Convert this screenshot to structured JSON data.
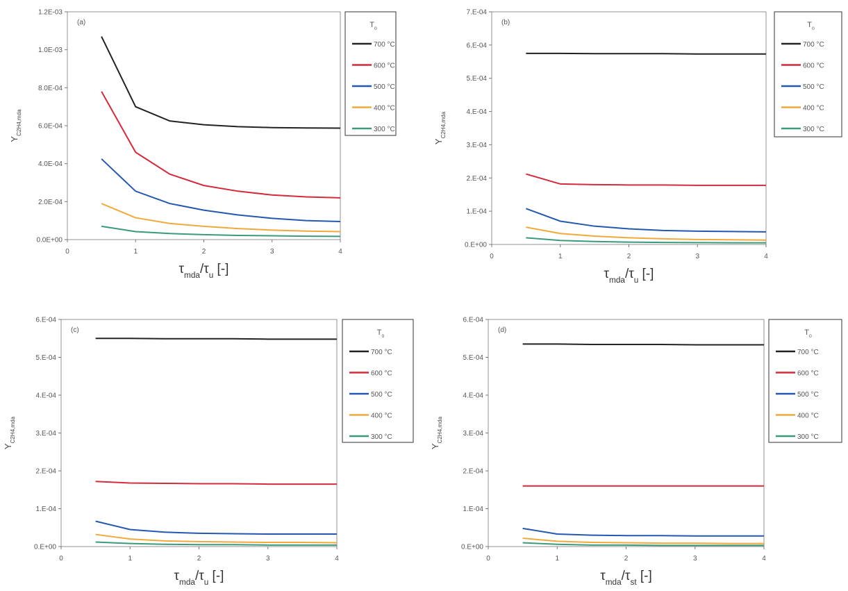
{
  "chart_data": [
    {
      "type": "line",
      "title": "(a)",
      "xlabel": [
        {
          "text": "τ"
        },
        {
          "text": "mda",
          "sub": true
        },
        {
          "text": "/τ"
        },
        {
          "text": "u",
          "sub": true
        },
        {
          "text": " [-]"
        }
      ],
      "ylabel": [
        {
          "text": "Y"
        },
        {
          "text": "C2H4,mda",
          "sub": true
        }
      ],
      "legend_title": [
        {
          "text": "T"
        },
        {
          "text": "0",
          "sub": true
        }
      ],
      "x": [
        0.5,
        1,
        1.5,
        2,
        2.5,
        3,
        3.5,
        4
      ],
      "xlim": [
        0,
        4
      ],
      "xticks": [
        0,
        1,
        2,
        3,
        4
      ],
      "ylim": [
        0,
        0.0012
      ],
      "yticks": [
        {
          "value": 0,
          "label": "0.0E+00"
        },
        {
          "value": 0.0002,
          "label": "2.0E-04"
        },
        {
          "value": 0.0004,
          "label": "4.0E-04"
        },
        {
          "value": 0.0006,
          "label": "6.0E-04"
        },
        {
          "value": 0.0008,
          "label": "8.0E-04"
        },
        {
          "value": 0.001,
          "label": "1.0E-03"
        },
        {
          "value": 0.0012,
          "label": "1.2E-03"
        }
      ],
      "series": [
        {
          "name": "700 °C",
          "color": "#222222",
          "values": [
            0.00107,
            0.0007,
            0.000625,
            0.000605,
            0.000595,
            0.00059,
            0.000588,
            0.000587
          ]
        },
        {
          "name": "600 °C",
          "color": "#d42a3c",
          "values": [
            0.00078,
            0.00046,
            0.000345,
            0.000285,
            0.000255,
            0.000235,
            0.000225,
            0.00022
          ]
        },
        {
          "name": "500 °C",
          "color": "#2458b0",
          "values": [
            0.000425,
            0.000255,
            0.00019,
            0.000155,
            0.00013,
            0.000112,
            0.0001,
            9.5e-05
          ]
        },
        {
          "name": "400 °C",
          "color": "#f2a93b",
          "values": [
            0.00019,
            0.000115,
            8.5e-05,
            7e-05,
            5.8e-05,
            5e-05,
            4.5e-05,
            4.2e-05
          ]
        },
        {
          "name": "300 °C",
          "color": "#3a9a7a",
          "values": [
            7e-05,
            4.2e-05,
            3.2e-05,
            2.6e-05,
            2.2e-05,
            2e-05,
            1.8e-05,
            1.7e-05
          ]
        }
      ]
    },
    {
      "type": "line",
      "title": "(b)",
      "xlabel": [
        {
          "text": "τ"
        },
        {
          "text": "mda",
          "sub": true
        },
        {
          "text": "/τ"
        },
        {
          "text": "u",
          "sub": true
        },
        {
          "text": " [-]"
        }
      ],
      "ylabel": [
        {
          "text": "Y"
        },
        {
          "text": "C2H4,mda",
          "sub": true
        }
      ],
      "legend_title": [
        {
          "text": "T"
        },
        {
          "text": "0",
          "sub": true
        }
      ],
      "x": [
        0.5,
        1,
        1.5,
        2,
        2.5,
        3,
        3.5,
        4
      ],
      "xlim": [
        0,
        4
      ],
      "xticks": [
        0,
        1,
        2,
        3,
        4
      ],
      "ylim": [
        0,
        0.0007
      ],
      "yticks": [
        {
          "value": 0,
          "label": "0.E+00"
        },
        {
          "value": 0.0001,
          "label": "1.E-04"
        },
        {
          "value": 0.0002,
          "label": "2.E-04"
        },
        {
          "value": 0.0003,
          "label": "3.E-04"
        },
        {
          "value": 0.0004,
          "label": "4.E-04"
        },
        {
          "value": 0.0005,
          "label": "5.E-04"
        },
        {
          "value": 0.0006,
          "label": "6.E-04"
        },
        {
          "value": 0.0007,
          "label": "7.E-04"
        }
      ],
      "series": [
        {
          "name": "700 °C",
          "color": "#222222",
          "values": [
            0.000575,
            0.000575,
            0.000574,
            0.000574,
            0.000574,
            0.000573,
            0.000573,
            0.000573
          ]
        },
        {
          "name": "600 °C",
          "color": "#d42a3c",
          "values": [
            0.000212,
            0.000182,
            0.00018,
            0.000179,
            0.000179,
            0.000178,
            0.000178,
            0.000178
          ]
        },
        {
          "name": "500 °C",
          "color": "#2458b0",
          "values": [
            0.000108,
            7e-05,
            5.5e-05,
            4.7e-05,
            4.2e-05,
            4e-05,
            3.9e-05,
            3.8e-05
          ]
        },
        {
          "name": "400 °C",
          "color": "#f2a93b",
          "values": [
            5.2e-05,
            3.3e-05,
            2.5e-05,
            2e-05,
            1.7e-05,
            1.5e-05,
            1.4e-05,
            1.3e-05
          ]
        },
        {
          "name": "300 °C",
          "color": "#3a9a7a",
          "values": [
            2e-05,
            1.2e-05,
            9e-06,
            7e-06,
            6e-06,
            5.5e-06,
            5e-06,
            5e-06
          ]
        }
      ]
    },
    {
      "type": "line",
      "title": "(c)",
      "xlabel": [
        {
          "text": "τ"
        },
        {
          "text": "mda",
          "sub": true
        },
        {
          "text": "/τ"
        },
        {
          "text": "u",
          "sub": true
        },
        {
          "text": " [-]"
        }
      ],
      "ylabel": [
        {
          "text": "Y"
        },
        {
          "text": "C2H4,mda",
          "sub": true
        }
      ],
      "legend_title": [
        {
          "text": "T"
        },
        {
          "text": "0",
          "sub": true
        }
      ],
      "x": [
        0.5,
        1,
        1.5,
        2,
        2.5,
        3,
        3.5,
        4
      ],
      "xlim": [
        0,
        4
      ],
      "xticks": [
        0,
        1,
        2,
        3,
        4
      ],
      "ylim": [
        0,
        0.0006
      ],
      "yticks": [
        {
          "value": 0,
          "label": "0.E+00"
        },
        {
          "value": 0.0001,
          "label": "1.E-04"
        },
        {
          "value": 0.0002,
          "label": "2.E-04"
        },
        {
          "value": 0.0003,
          "label": "3.E-04"
        },
        {
          "value": 0.0004,
          "label": "4.E-04"
        },
        {
          "value": 0.0005,
          "label": "5.E-04"
        },
        {
          "value": 0.0006,
          "label": "6.E-04"
        }
      ],
      "series": [
        {
          "name": "700 °C",
          "color": "#222222",
          "values": [
            0.00055,
            0.00055,
            0.000549,
            0.000549,
            0.000549,
            0.000548,
            0.000548,
            0.000548
          ]
        },
        {
          "name": "600 °C",
          "color": "#d42a3c",
          "values": [
            0.000172,
            0.000168,
            0.000167,
            0.000166,
            0.000166,
            0.000165,
            0.000165,
            0.000165
          ]
        },
        {
          "name": "500 °C",
          "color": "#2458b0",
          "values": [
            6.7e-05,
            4.5e-05,
            3.8e-05,
            3.5e-05,
            3.4e-05,
            3.3e-05,
            3.3e-05,
            3.3e-05
          ]
        },
        {
          "name": "400 °C",
          "color": "#f2a93b",
          "values": [
            3.2e-05,
            2e-05,
            1.5e-05,
            1.3e-05,
            1.2e-05,
            1.1e-05,
            1.1e-05,
            1e-05
          ]
        },
        {
          "name": "300 °C",
          "color": "#3a9a7a",
          "values": [
            1.2e-05,
            8e-06,
            6e-06,
            5e-06,
            5e-06,
            4e-06,
            4e-06,
            4e-06
          ]
        }
      ]
    },
    {
      "type": "line",
      "title": "(d)",
      "xlabel": [
        {
          "text": "τ"
        },
        {
          "text": "mda",
          "sub": true
        },
        {
          "text": "/τ"
        },
        {
          "text": "st",
          "sub": true
        },
        {
          "text": " [-]"
        }
      ],
      "ylabel": [
        {
          "text": "Y"
        },
        {
          "text": "C2H4,mda",
          "sub": true
        }
      ],
      "legend_title": [
        {
          "text": "T"
        },
        {
          "text": "0",
          "sub": true
        }
      ],
      "x": [
        0.5,
        1,
        1.5,
        2,
        2.5,
        3,
        3.5,
        4
      ],
      "xlim": [
        0,
        4
      ],
      "xticks": [
        0,
        1,
        2,
        3,
        4
      ],
      "ylim": [
        0,
        0.0006
      ],
      "yticks": [
        {
          "value": 0,
          "label": "0.E+00"
        },
        {
          "value": 0.0001,
          "label": "1.E-04"
        },
        {
          "value": 0.0002,
          "label": "2.E-04"
        },
        {
          "value": 0.0003,
          "label": "3.E-04"
        },
        {
          "value": 0.0004,
          "label": "4.E-04"
        },
        {
          "value": 0.0005,
          "label": "5.E-04"
        },
        {
          "value": 0.0006,
          "label": "6.E-04"
        }
      ],
      "series": [
        {
          "name": "700 °C",
          "color": "#222222",
          "values": [
            0.000535,
            0.000535,
            0.000534,
            0.000534,
            0.000534,
            0.000533,
            0.000533,
            0.000533
          ]
        },
        {
          "name": "600 °C",
          "color": "#d42a3c",
          "values": [
            0.00016,
            0.00016,
            0.00016,
            0.00016,
            0.00016,
            0.00016,
            0.00016,
            0.00016
          ]
        },
        {
          "name": "500 °C",
          "color": "#2458b0",
          "values": [
            4.8e-05,
            3.3e-05,
            3e-05,
            2.9e-05,
            2.9e-05,
            2.8e-05,
            2.8e-05,
            2.8e-05
          ]
        },
        {
          "name": "400 °C",
          "color": "#f2a93b",
          "values": [
            2.2e-05,
            1.4e-05,
            1.1e-05,
            1e-05,
            9e-06,
            9e-06,
            8e-06,
            8e-06
          ]
        },
        {
          "name": "300 °C",
          "color": "#3a9a7a",
          "values": [
            1e-05,
            6e-06,
            4e-06,
            4e-06,
            3e-06,
            3e-06,
            3e-06,
            3e-06
          ]
        }
      ]
    }
  ]
}
